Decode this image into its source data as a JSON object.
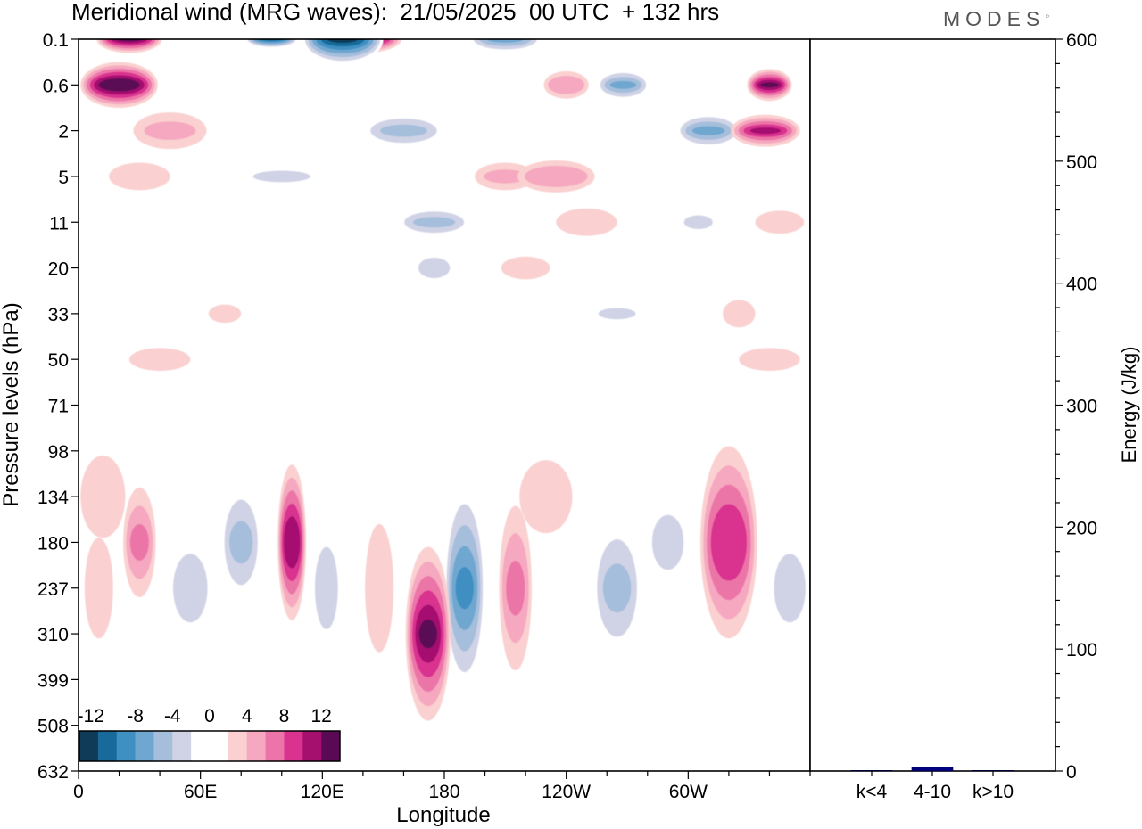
{
  "title": "Meridional wind (MRG waves):  21/05/2025  00 UTC  + 132 hrs",
  "logo": "MODES",
  "chart_data": [
    {
      "type": "heatmap",
      "title": "Meridional wind (MRG waves):  21/05/2025  00 UTC  + 132 hrs",
      "xlabel": "Longitude",
      "ylabel": "Pressure levels (hPa)",
      "x_ticks": [
        "0",
        "60E",
        "120E",
        "180",
        "120W",
        "60W"
      ],
      "x_tick_values": [
        0,
        60,
        120,
        180,
        240,
        300
      ],
      "xlim": [
        0,
        360
      ],
      "y_ticks": [
        "0.1",
        "0.6",
        "2",
        "5",
        "11",
        "20",
        "33",
        "50",
        "71",
        "98",
        "134",
        "180",
        "237",
        "310",
        "399",
        "508",
        "632"
      ],
      "grid": false,
      "colorbar": {
        "labels": [
          "-12",
          "-8",
          "-4",
          "0",
          "4",
          "8",
          "12"
        ],
        "colors": [
          "#0f3a58",
          "#176a9a",
          "#3f8fc2",
          "#6fa7d0",
          "#a5bedb",
          "#d0d3e6",
          "#ffffff",
          "#ffffff",
          "#fad0d0",
          "#f5a8bf",
          "#ec74a8",
          "#d9338f",
          "#a5106f",
          "#5a0a55"
        ]
      },
      "features": [
        {
          "lon": 130,
          "level": "0.1",
          "lon_width": 40,
          "level_extent": 1.1,
          "value": -14
        },
        {
          "lon": 20,
          "level": "0.6",
          "lon_width": 38,
          "level_extent": 1.0,
          "value": 14
        },
        {
          "lon": 25,
          "level": "0.1",
          "lon_width": 32,
          "level_extent": 0.6,
          "value": 12
        },
        {
          "lon": 140,
          "level": "0.1",
          "lon_width": 38,
          "level_extent": 0.6,
          "value": 12
        },
        {
          "lon": 210,
          "level": "0.1",
          "lon_width": 36,
          "level_extent": 0.6,
          "value": -8
        },
        {
          "lon": 95,
          "level": "0.1",
          "lon_width": 26,
          "level_extent": 0.4,
          "value": -12
        },
        {
          "lon": 160,
          "level": "2",
          "lon_width": 40,
          "level_extent": 0.8,
          "value": -5
        },
        {
          "lon": 338,
          "level": "2",
          "lon_width": 34,
          "level_extent": 0.7,
          "value": 10
        },
        {
          "lon": 340,
          "level": "0.6",
          "lon_width": 22,
          "level_extent": 0.7,
          "value": 12
        },
        {
          "lon": 268,
          "level": "0.6",
          "lon_width": 26,
          "level_extent": 0.7,
          "value": -7
        },
        {
          "lon": 240,
          "level": "0.6",
          "lon_width": 22,
          "level_extent": 0.6,
          "value": 5
        },
        {
          "lon": 310,
          "level": "2",
          "lon_width": 32,
          "level_extent": 0.8,
          "value": -8
        },
        {
          "lon": 210,
          "level": "5",
          "lon_width": 30,
          "level_extent": 0.6,
          "value": 4
        },
        {
          "lon": 235,
          "level": "5",
          "lon_width": 38,
          "level_extent": 0.7,
          "value": 5
        },
        {
          "lon": 175,
          "level": "11",
          "lon_width": 36,
          "level_extent": 0.7,
          "value": -5
        },
        {
          "lon": 45,
          "level": "2",
          "lon_width": 36,
          "level_extent": 0.8,
          "value": 4
        },
        {
          "lon": 30,
          "level": "5",
          "lon_width": 30,
          "level_extent": 0.6,
          "value": 3
        },
        {
          "lon": 100,
          "level": "5",
          "lon_width": 40,
          "level_extent": 0.5,
          "value": -3
        },
        {
          "lon": 250,
          "level": "11",
          "lon_width": 30,
          "level_extent": 0.6,
          "value": 3
        },
        {
          "lon": 175,
          "level": "20",
          "lon_width": 22,
          "level_extent": 0.9,
          "value": -3
        },
        {
          "lon": 220,
          "level": "20",
          "lon_width": 24,
          "level_extent": 0.5,
          "value": 3
        },
        {
          "lon": 305,
          "level": "11",
          "lon_width": 20,
          "level_extent": 0.6,
          "value": -3
        },
        {
          "lon": 345,
          "level": "11",
          "lon_width": 24,
          "level_extent": 0.5,
          "value": 3
        },
        {
          "lon": 72,
          "level": "33",
          "lon_width": 16,
          "level_extent": 0.4,
          "value": 3
        },
        {
          "lon": 265,
          "level": "33",
          "lon_width": 26,
          "level_extent": 0.5,
          "value": -3
        },
        {
          "lon": 325,
          "level": "33",
          "lon_width": 16,
          "level_extent": 0.6,
          "value": 3
        },
        {
          "lon": 340,
          "level": "50",
          "lon_width": 30,
          "level_extent": 0.5,
          "value": 3
        },
        {
          "lon": 40,
          "level": "50",
          "lon_width": 30,
          "level_extent": 0.5,
          "value": 3
        },
        {
          "lon": 30,
          "level": "180",
          "lon_width": 16,
          "level_extent": 2.4,
          "value": 6
        },
        {
          "lon": 55,
          "level": "237",
          "lon_width": 24,
          "level_extent": 3.0,
          "value": -4
        },
        {
          "lon": 80,
          "level": "180",
          "lon_width": 20,
          "level_extent": 2.8,
          "value": -5
        },
        {
          "lon": 105,
          "level": "180",
          "lon_width": 14,
          "level_extent": 3.4,
          "value": 11
        },
        {
          "lon": 122,
          "level": "237",
          "lon_width": 16,
          "level_extent": 3.6,
          "value": -4
        },
        {
          "lon": 148,
          "level": "237",
          "lon_width": 14,
          "level_extent": 2.8,
          "value": 3
        },
        {
          "lon": 172,
          "level": "310",
          "lon_width": 22,
          "level_extent": 3.8,
          "value": 12
        },
        {
          "lon": 190,
          "level": "237",
          "lon_width": 20,
          "level_extent": 4.6,
          "value": -9
        },
        {
          "lon": 215,
          "level": "237",
          "lon_width": 16,
          "level_extent": 3.6,
          "value": 6
        },
        {
          "lon": 230,
          "level": "134",
          "lon_width": 26,
          "level_extent": 1.6,
          "value": 3
        },
        {
          "lon": 265,
          "level": "237",
          "lon_width": 24,
          "level_extent": 3.2,
          "value": -5
        },
        {
          "lon": 290,
          "level": "180",
          "lon_width": 22,
          "level_extent": 2.4,
          "value": -3
        },
        {
          "lon": 320,
          "level": "180",
          "lon_width": 28,
          "level_extent": 4.2,
          "value": 9
        },
        {
          "lon": 350,
          "level": "237",
          "lon_width": 22,
          "level_extent": 3.0,
          "value": -4
        },
        {
          "lon": 10,
          "level": "237",
          "lon_width": 14,
          "level_extent": 2.2,
          "value": 2
        },
        {
          "lon": 12,
          "level": "134",
          "lon_width": 22,
          "level_extent": 1.8,
          "value": 3
        }
      ]
    },
    {
      "type": "bar",
      "categories": [
        "k<4",
        "4-10",
        "k>10"
      ],
      "values": [
        0.5,
        3,
        0.5
      ],
      "ylabel": "Energy (J/kg)",
      "ylim": [
        0,
        600
      ],
      "y_ticks": [
        "0",
        "100",
        "200",
        "300",
        "400",
        "500",
        "600"
      ],
      "y_tick_values": [
        0,
        100,
        200,
        300,
        400,
        500,
        600
      ],
      "colors": [
        "#000080",
        "#000080",
        "#000080"
      ]
    }
  ]
}
